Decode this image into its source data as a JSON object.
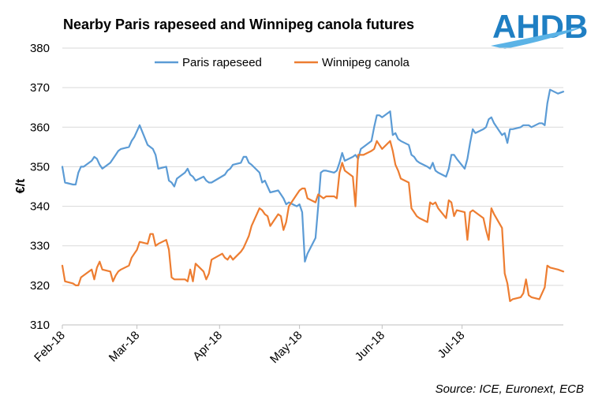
{
  "chart_data": {
    "type": "line",
    "title": "Nearby Paris rapeseed and Winnipeg canola futures",
    "ylabel": "€/t",
    "ylim": [
      310,
      380
    ],
    "yticks": [
      310,
      320,
      330,
      340,
      350,
      360,
      370,
      380
    ],
    "xlim": [
      "2018-02-01",
      "2018-08-08"
    ],
    "xticks": [
      {
        "date": "2018-02-01",
        "label": "Feb-18"
      },
      {
        "date": "2018-03-01",
        "label": "Mar-18"
      },
      {
        "date": "2018-04-01",
        "label": "Apr-18"
      },
      {
        "date": "2018-05-01",
        "label": "May-18"
      },
      {
        "date": "2018-06-01",
        "label": "Jun-18"
      },
      {
        "date": "2018-07-01",
        "label": "Jul-18"
      }
    ],
    "grid": true,
    "legend_position": "top",
    "series": [
      {
        "name": "Paris rapeseed",
        "color": "#5b9bd5",
        "points": [
          [
            "2018-02-01",
            350
          ],
          [
            "2018-02-02",
            346
          ],
          [
            "2018-02-05",
            345.5
          ],
          [
            "2018-02-06",
            345.5
          ],
          [
            "2018-02-07",
            348.5
          ],
          [
            "2018-02-08",
            350
          ],
          [
            "2018-02-09",
            350
          ],
          [
            "2018-02-12",
            351.5
          ],
          [
            "2018-02-13",
            352.5
          ],
          [
            "2018-02-14",
            352
          ],
          [
            "2018-02-15",
            350.5
          ],
          [
            "2018-02-16",
            349.5
          ],
          [
            "2018-02-19",
            351
          ],
          [
            "2018-02-20",
            352
          ],
          [
            "2018-02-21",
            353
          ],
          [
            "2018-02-22",
            354
          ],
          [
            "2018-02-23",
            354.5
          ],
          [
            "2018-02-26",
            355
          ],
          [
            "2018-02-27",
            356.5
          ],
          [
            "2018-02-28",
            357.5
          ],
          [
            "2018-03-01",
            359
          ],
          [
            "2018-03-02",
            360.5
          ],
          [
            "2018-03-05",
            355.5
          ],
          [
            "2018-03-06",
            355
          ],
          [
            "2018-03-07",
            354.5
          ],
          [
            "2018-03-08",
            353
          ],
          [
            "2018-03-09",
            349.5
          ],
          [
            "2018-03-12",
            350
          ],
          [
            "2018-03-13",
            346.5
          ],
          [
            "2018-03-14",
            346
          ],
          [
            "2018-03-15",
            345
          ],
          [
            "2018-03-16",
            347
          ],
          [
            "2018-03-19",
            348.5
          ],
          [
            "2018-03-20",
            349.5
          ],
          [
            "2018-03-21",
            348
          ],
          [
            "2018-03-22",
            347.5
          ],
          [
            "2018-03-23",
            346.5
          ],
          [
            "2018-03-26",
            347.5
          ],
          [
            "2018-03-27",
            346.5
          ],
          [
            "2018-03-28",
            346
          ],
          [
            "2018-03-29",
            346
          ],
          [
            "2018-04-03",
            348
          ],
          [
            "2018-04-04",
            349
          ],
          [
            "2018-04-05",
            349.5
          ],
          [
            "2018-04-06",
            350.5
          ],
          [
            "2018-04-09",
            351
          ],
          [
            "2018-04-10",
            352.5
          ],
          [
            "2018-04-11",
            352.5
          ],
          [
            "2018-04-12",
            351
          ],
          [
            "2018-04-13",
            350.5
          ],
          [
            "2018-04-16",
            348.5
          ],
          [
            "2018-04-17",
            346
          ],
          [
            "2018-04-18",
            346.5
          ],
          [
            "2018-04-19",
            345
          ],
          [
            "2018-04-20",
            343.5
          ],
          [
            "2018-04-23",
            344
          ],
          [
            "2018-04-24",
            343
          ],
          [
            "2018-04-25",
            342
          ],
          [
            "2018-04-26",
            340.5
          ],
          [
            "2018-04-27",
            341
          ],
          [
            "2018-04-30",
            340
          ],
          [
            "2018-05-01",
            340.5
          ],
          [
            "2018-05-02",
            338.5
          ],
          [
            "2018-05-03",
            326
          ],
          [
            "2018-05-04",
            328
          ],
          [
            "2018-05-07",
            332
          ],
          [
            "2018-05-08",
            340
          ],
          [
            "2018-05-09",
            348.5
          ],
          [
            "2018-05-10",
            349
          ],
          [
            "2018-05-11",
            349
          ],
          [
            "2018-05-14",
            348.5
          ],
          [
            "2018-05-15",
            349
          ],
          [
            "2018-05-16",
            351
          ],
          [
            "2018-05-17",
            353.5
          ],
          [
            "2018-05-18",
            351.5
          ],
          [
            "2018-05-21",
            352.5
          ],
          [
            "2018-05-22",
            353
          ],
          [
            "2018-05-23",
            352
          ],
          [
            "2018-05-24",
            354.5
          ],
          [
            "2018-05-25",
            355
          ],
          [
            "2018-05-28",
            356.5
          ],
          [
            "2018-05-29",
            360
          ],
          [
            "2018-05-30",
            363
          ],
          [
            "2018-05-31",
            363
          ],
          [
            "2018-06-01",
            362.5
          ],
          [
            "2018-06-04",
            364
          ],
          [
            "2018-06-05",
            358
          ],
          [
            "2018-06-06",
            358.5
          ],
          [
            "2018-06-07",
            357
          ],
          [
            "2018-06-08",
            356.5
          ],
          [
            "2018-06-11",
            355.5
          ],
          [
            "2018-06-12",
            353
          ],
          [
            "2018-06-13",
            352.5
          ],
          [
            "2018-06-14",
            351.5
          ],
          [
            "2018-06-15",
            351
          ],
          [
            "2018-06-18",
            350
          ],
          [
            "2018-06-19",
            349.5
          ],
          [
            "2018-06-20",
            351
          ],
          [
            "2018-06-21",
            349
          ],
          [
            "2018-06-22",
            348.5
          ],
          [
            "2018-06-25",
            347.5
          ],
          [
            "2018-06-26",
            349.5
          ],
          [
            "2018-06-27",
            353
          ],
          [
            "2018-06-28",
            353
          ],
          [
            "2018-06-29",
            352
          ],
          [
            "2018-07-02",
            349.5
          ],
          [
            "2018-07-03",
            352
          ],
          [
            "2018-07-04",
            356
          ],
          [
            "2018-07-05",
            359.5
          ],
          [
            "2018-07-06",
            358.5
          ],
          [
            "2018-07-09",
            359.5
          ],
          [
            "2018-07-10",
            360
          ],
          [
            "2018-07-11",
            362
          ],
          [
            "2018-07-12",
            362.5
          ],
          [
            "2018-07-13",
            361
          ],
          [
            "2018-07-16",
            358
          ],
          [
            "2018-07-17",
            358.5
          ],
          [
            "2018-07-18",
            356
          ],
          [
            "2018-07-19",
            359.5
          ],
          [
            "2018-07-20",
            359.5
          ],
          [
            "2018-07-23",
            360
          ],
          [
            "2018-07-24",
            360.5
          ],
          [
            "2018-07-25",
            360.5
          ],
          [
            "2018-07-26",
            360.5
          ],
          [
            "2018-07-27",
            360
          ],
          [
            "2018-07-30",
            361
          ],
          [
            "2018-07-31",
            361
          ],
          [
            "2018-08-01",
            360.5
          ],
          [
            "2018-08-02",
            366
          ],
          [
            "2018-08-03",
            369.5
          ],
          [
            "2018-08-06",
            368.5
          ],
          [
            "2018-08-08",
            369
          ]
        ]
      },
      {
        "name": "Winnipeg canola",
        "color": "#ed7d31",
        "points": [
          [
            "2018-02-01",
            325
          ],
          [
            "2018-02-02",
            321
          ],
          [
            "2018-02-05",
            320.5
          ],
          [
            "2018-02-06",
            320
          ],
          [
            "2018-02-07",
            320
          ],
          [
            "2018-02-08",
            322
          ],
          [
            "2018-02-09",
            322.5
          ],
          [
            "2018-02-12",
            324
          ],
          [
            "2018-02-13",
            321.5
          ],
          [
            "2018-02-14",
            324.5
          ],
          [
            "2018-02-15",
            326
          ],
          [
            "2018-02-16",
            324
          ],
          [
            "2018-02-19",
            323.5
          ],
          [
            "2018-02-20",
            321
          ],
          [
            "2018-02-21",
            322.5
          ],
          [
            "2018-02-22",
            323.5
          ],
          [
            "2018-02-23",
            324
          ],
          [
            "2018-02-26",
            325
          ],
          [
            "2018-02-27",
            327
          ],
          [
            "2018-02-28",
            328
          ],
          [
            "2018-03-01",
            329
          ],
          [
            "2018-03-02",
            331
          ],
          [
            "2018-03-05",
            330.5
          ],
          [
            "2018-03-06",
            333
          ],
          [
            "2018-03-07",
            333
          ],
          [
            "2018-03-08",
            330
          ],
          [
            "2018-03-09",
            330.5
          ],
          [
            "2018-03-12",
            331.5
          ],
          [
            "2018-03-13",
            329
          ],
          [
            "2018-03-14",
            322
          ],
          [
            "2018-03-15",
            321.5
          ],
          [
            "2018-03-16",
            321.5
          ],
          [
            "2018-03-19",
            321.5
          ],
          [
            "2018-03-20",
            321
          ],
          [
            "2018-03-21",
            324
          ],
          [
            "2018-03-22",
            321
          ],
          [
            "2018-03-23",
            325.5
          ],
          [
            "2018-03-26",
            323.5
          ],
          [
            "2018-03-27",
            321.5
          ],
          [
            "2018-03-28",
            323
          ],
          [
            "2018-03-29",
            326.5
          ],
          [
            "2018-04-02",
            328
          ],
          [
            "2018-04-03",
            327
          ],
          [
            "2018-04-04",
            326.5
          ],
          [
            "2018-04-05",
            327.5
          ],
          [
            "2018-04-06",
            326.5
          ],
          [
            "2018-04-09",
            328.5
          ],
          [
            "2018-04-10",
            329.5
          ],
          [
            "2018-04-11",
            331
          ],
          [
            "2018-04-12",
            332.5
          ],
          [
            "2018-04-13",
            335
          ],
          [
            "2018-04-16",
            339.5
          ],
          [
            "2018-04-17",
            339
          ],
          [
            "2018-04-18",
            338
          ],
          [
            "2018-04-19",
            337.5
          ],
          [
            "2018-04-20",
            335
          ],
          [
            "2018-04-23",
            338
          ],
          [
            "2018-04-24",
            337.5
          ],
          [
            "2018-04-25",
            334
          ],
          [
            "2018-04-26",
            336
          ],
          [
            "2018-04-27",
            340
          ],
          [
            "2018-04-30",
            343
          ],
          [
            "2018-05-01",
            344
          ],
          [
            "2018-05-02",
            344.5
          ],
          [
            "2018-05-03",
            344.5
          ],
          [
            "2018-05-04",
            342
          ],
          [
            "2018-05-07",
            341
          ],
          [
            "2018-05-08",
            343
          ],
          [
            "2018-05-09",
            342.5
          ],
          [
            "2018-05-10",
            342
          ],
          [
            "2018-05-11",
            342.5
          ],
          [
            "2018-05-14",
            342.5
          ],
          [
            "2018-05-15",
            342
          ],
          [
            "2018-05-16",
            348.5
          ],
          [
            "2018-05-17",
            351
          ],
          [
            "2018-05-18",
            349
          ],
          [
            "2018-05-21",
            347.5
          ],
          [
            "2018-05-22",
            340
          ],
          [
            "2018-05-23",
            353
          ],
          [
            "2018-05-24",
            353
          ],
          [
            "2018-05-25",
            353
          ],
          [
            "2018-05-28",
            354
          ],
          [
            "2018-05-29",
            354.5
          ],
          [
            "2018-05-30",
            356.5
          ],
          [
            "2018-05-31",
            355.5
          ],
          [
            "2018-06-01",
            354.5
          ],
          [
            "2018-06-04",
            356.5
          ],
          [
            "2018-06-05",
            354
          ],
          [
            "2018-06-06",
            350.5
          ],
          [
            "2018-06-07",
            349
          ],
          [
            "2018-06-08",
            347
          ],
          [
            "2018-06-11",
            346
          ],
          [
            "2018-06-12",
            339.5
          ],
          [
            "2018-06-13",
            338.5
          ],
          [
            "2018-06-14",
            337.5
          ],
          [
            "2018-06-15",
            337
          ],
          [
            "2018-06-18",
            336
          ],
          [
            "2018-06-19",
            341
          ],
          [
            "2018-06-20",
            340.5
          ],
          [
            "2018-06-21",
            341
          ],
          [
            "2018-06-22",
            339.5
          ],
          [
            "2018-06-25",
            337
          ],
          [
            "2018-06-26",
            341.5
          ],
          [
            "2018-06-27",
            341
          ],
          [
            "2018-06-28",
            337.5
          ],
          [
            "2018-06-29",
            339
          ],
          [
            "2018-07-02",
            338.5
          ],
          [
            "2018-07-03",
            331.5
          ],
          [
            "2018-07-04",
            338.5
          ],
          [
            "2018-07-05",
            339
          ],
          [
            "2018-07-06",
            338.5
          ],
          [
            "2018-07-09",
            337
          ],
          [
            "2018-07-10",
            334
          ],
          [
            "2018-07-11",
            331.5
          ],
          [
            "2018-07-12",
            339.5
          ],
          [
            "2018-07-13",
            338
          ],
          [
            "2018-07-16",
            334.5
          ],
          [
            "2018-07-17",
            323
          ],
          [
            "2018-07-18",
            320.5
          ],
          [
            "2018-07-19",
            316
          ],
          [
            "2018-07-20",
            316.5
          ],
          [
            "2018-07-23",
            317
          ],
          [
            "2018-07-24",
            318
          ],
          [
            "2018-07-25",
            321.5
          ],
          [
            "2018-07-26",
            317.5
          ],
          [
            "2018-07-27",
            317
          ],
          [
            "2018-07-30",
            316.5
          ],
          [
            "2018-07-31",
            318
          ],
          [
            "2018-08-01",
            319.5
          ],
          [
            "2018-08-02",
            325
          ],
          [
            "2018-08-03",
            324.5
          ],
          [
            "2018-08-06",
            324
          ],
          [
            "2018-08-08",
            323.5
          ]
        ]
      }
    ]
  },
  "source": "Source: ICE, Euronext, ECB",
  "logo": {
    "text": "AHDB",
    "color": "#1f7fc3",
    "swoosh_color": "#5bb3e6"
  }
}
